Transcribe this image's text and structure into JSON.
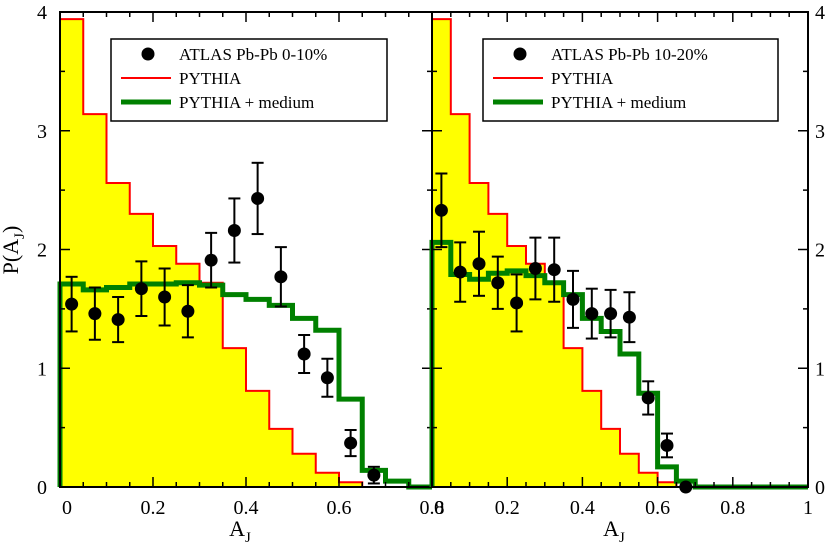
{
  "colors": {
    "pythia": "#ff0000",
    "pythia_fill": "#ffff00",
    "medium": "#008000",
    "atlas": "#000000"
  },
  "chart_data": [
    {
      "type": "histogram",
      "panel": "left",
      "xlabel_main": "A",
      "xlabel_sub": "J",
      "ylabel": "P(A",
      "ylabel_sub": "J",
      "ylabel_close": ")",
      "xlim": [
        0,
        0.8
      ],
      "ylim": [
        0,
        4
      ],
      "xticks": [
        0,
        0.2,
        0.4,
        0.6,
        0.8
      ],
      "xtick_labels": [
        "0",
        "0.2",
        "0.4",
        "0.6",
        "0.8"
      ],
      "yticks": [
        0,
        1,
        2,
        3,
        4
      ],
      "ytick_labels": [
        "0",
        "1",
        "2",
        "3",
        "4"
      ],
      "legend_position": "top-right",
      "legend": [
        "ATLAS Pb-Pb 0-10%",
        "PYTHIA",
        "PYTHIA + medium"
      ],
      "bin_edges": [
        0,
        0.05,
        0.1,
        0.15,
        0.2,
        0.25,
        0.3,
        0.35,
        0.4,
        0.45,
        0.5,
        0.55,
        0.6,
        0.65,
        0.7,
        0.75,
        0.8
      ],
      "pythia": [
        3.94,
        3.14,
        2.56,
        2.3,
        2.03,
        1.88,
        1.72,
        1.17,
        0.81,
        0.49,
        0.28,
        0.12,
        0.04,
        0.0,
        0.0,
        0.0
      ],
      "medium": [
        1.71,
        1.66,
        1.68,
        1.71,
        1.71,
        1.72,
        1.7,
        1.62,
        1.58,
        1.53,
        1.42,
        1.32,
        0.74,
        0.14,
        0.05,
        0.0
      ],
      "atlas_x": [
        0.025,
        0.075,
        0.125,
        0.175,
        0.225,
        0.275,
        0.325,
        0.375,
        0.425,
        0.475,
        0.525,
        0.575,
        0.625,
        0.675
      ],
      "atlas_y": [
        1.54,
        1.46,
        1.41,
        1.67,
        1.6,
        1.48,
        1.91,
        2.16,
        2.43,
        1.77,
        1.12,
        0.92,
        0.37,
        0.1
      ],
      "atlas_err": [
        0.23,
        0.22,
        0.19,
        0.23,
        0.24,
        0.22,
        0.23,
        0.27,
        0.3,
        0.25,
        0.16,
        0.16,
        0.11,
        0.07
      ]
    },
    {
      "type": "histogram",
      "panel": "right",
      "xlabel_main": "A",
      "xlabel_sub": "J",
      "xlim": [
        0,
        1.0
      ],
      "ylim": [
        0,
        4
      ],
      "xticks": [
        0,
        0.2,
        0.4,
        0.6,
        0.8,
        1.0
      ],
      "xtick_labels": [
        "0",
        "0.2",
        "0.4",
        "0.6",
        "0.8",
        "1"
      ],
      "yticks": [
        0,
        1,
        2,
        3,
        4
      ],
      "ytick_labels": [
        "0",
        "1",
        "2",
        "3",
        "4"
      ],
      "legend_position": "top-right",
      "legend": [
        "ATLAS Pb-Pb 10-20%",
        "PYTHIA",
        "PYTHIA + medium"
      ],
      "bin_edges": [
        0,
        0.05,
        0.1,
        0.15,
        0.2,
        0.25,
        0.3,
        0.35,
        0.4,
        0.45,
        0.5,
        0.55,
        0.6,
        0.65,
        0.7,
        0.75,
        0.8,
        0.85,
        0.9,
        0.95,
        1.0
      ],
      "pythia": [
        3.94,
        3.14,
        2.56,
        2.3,
        2.03,
        1.88,
        1.72,
        1.17,
        0.81,
        0.49,
        0.28,
        0.12,
        0.04,
        0.0,
        0.0,
        0.0,
        0.0,
        0.0,
        0.0,
        0.0
      ],
      "medium": [
        2.06,
        1.79,
        1.75,
        1.8,
        1.82,
        1.78,
        1.72,
        1.62,
        1.42,
        1.31,
        1.12,
        0.79,
        0.17,
        0.05,
        0.0,
        0.0,
        0.0,
        0.0,
        0.0,
        0.0
      ],
      "atlas_x": [
        0.025,
        0.075,
        0.125,
        0.175,
        0.225,
        0.275,
        0.325,
        0.375,
        0.425,
        0.475,
        0.525,
        0.575,
        0.625,
        0.675
      ],
      "atlas_y": [
        2.33,
        1.81,
        1.88,
        1.72,
        1.55,
        1.84,
        1.83,
        1.58,
        1.46,
        1.46,
        1.43,
        0.75,
        0.35,
        0.0
      ],
      "atlas_err": [
        0.31,
        0.25,
        0.27,
        0.22,
        0.24,
        0.26,
        0.27,
        0.24,
        0.21,
        0.2,
        0.21,
        0.14,
        0.1,
        0.0
      ]
    }
  ]
}
